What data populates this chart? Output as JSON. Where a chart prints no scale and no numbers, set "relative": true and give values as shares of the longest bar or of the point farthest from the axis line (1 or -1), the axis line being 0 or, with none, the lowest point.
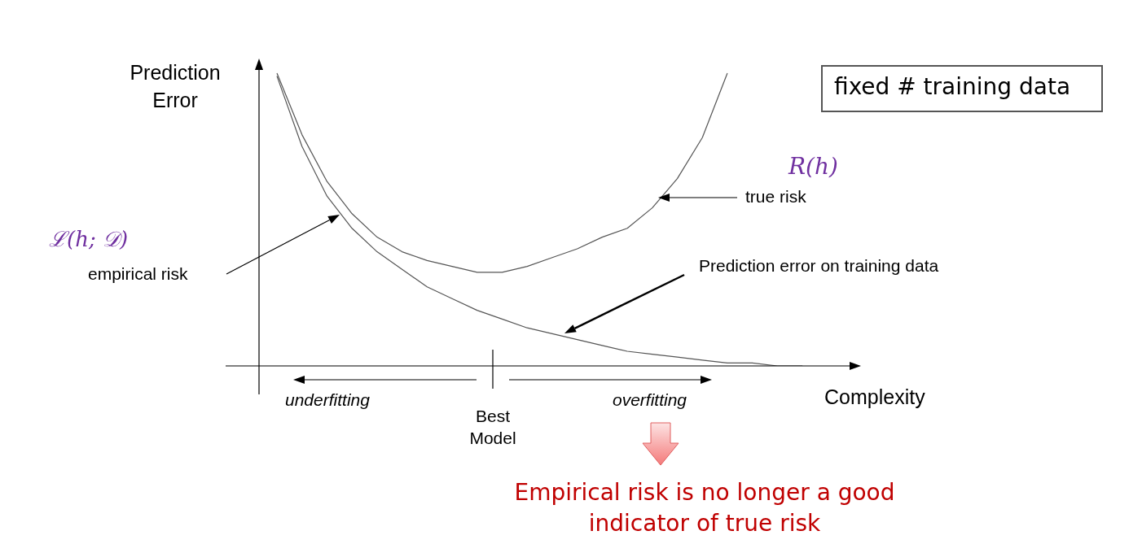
{
  "chart_data": {
    "type": "line",
    "relative": true,
    "xlabel": "Complexity",
    "ylabel": "Prediction Error",
    "categories": [
      null,
      null,
      null,
      null,
      null,
      null,
      null,
      null,
      null,
      null,
      null,
      null,
      null,
      null,
      null,
      null,
      null,
      null,
      null,
      null,
      null,
      null
    ],
    "series": [
      {
        "color": "#555555",
        "values": [
          1,
          0.79,
          0.63,
          0.52,
          0.44,
          0.39,
          0.36,
          0.34,
          0.32,
          0.32,
          0.34,
          0.37,
          0.4,
          0.44,
          0.47,
          0.54,
          0.64,
          0.78,
          1,
          null,
          null,
          null
        ]
      },
      {
        "color": "#555555",
        "values": [
          0.99,
          0.75,
          0.58,
          0.47,
          0.39,
          0.33,
          0.27,
          0.23,
          0.19,
          0.16,
          0.13,
          0.11,
          0.09,
          0.07,
          0.05,
          0.04,
          0.03,
          0.02,
          0.01,
          0.01,
          0,
          0
        ]
      }
    ],
    "annotations": [
      "fixed # training data",
      "R(h)",
      "ℒ(h; 𝒟)",
      "Prediction error on training data",
      "underfitting",
      "overfitting",
      "Best Model",
      "Empirical risk is no longer a good indicator of true risk",
      "true risk",
      "empirical risk"
    ]
  }
}
